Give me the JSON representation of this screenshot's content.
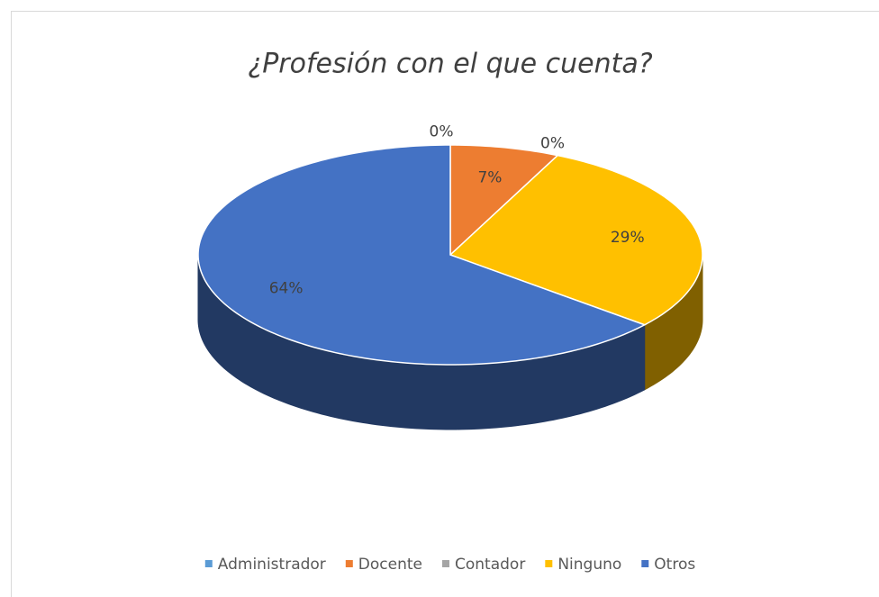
{
  "chart_data": {
    "type": "pie",
    "title": "¿Profesión con el que cuenta?",
    "categories": [
      "Administrador",
      "Docente",
      "Contador",
      "Ninguno",
      "Otros"
    ],
    "values": [
      0,
      7,
      0,
      29,
      64
    ],
    "value_labels": [
      "0%",
      "7%",
      "0%",
      "29%",
      "64%"
    ],
    "colors": [
      "#5b9bd5",
      "#ed7d31",
      "#a5a5a5",
      "#ffc000",
      "#4472c4"
    ],
    "legend": "bottom"
  }
}
